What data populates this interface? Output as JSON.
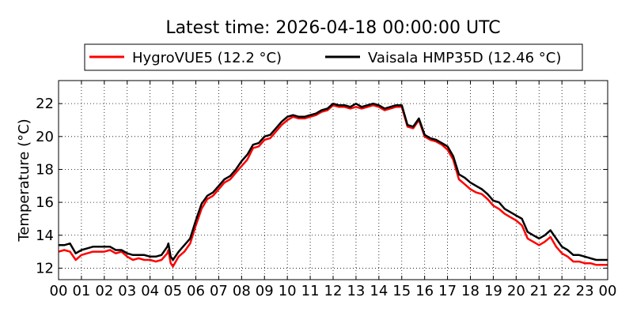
{
  "chart_data": {
    "type": "line",
    "title": "Latest time: 2026-04-18 00:00:00 UTC",
    "xlabel": "",
    "ylabel": "Temperature (°C)",
    "x_unit": "hour",
    "xlim": [
      0,
      24
    ],
    "ylim": [
      11.3,
      23.4
    ],
    "grid": true,
    "legend_placement": "top",
    "xticks": [
      0,
      1,
      2,
      3,
      4,
      5,
      6,
      7,
      8,
      9,
      10,
      11,
      12,
      13,
      14,
      15,
      16,
      17,
      18,
      19,
      20,
      21,
      22,
      23,
      24
    ],
    "xtick_labels": [
      "00",
      "01",
      "02",
      "03",
      "04",
      "05",
      "06",
      "07",
      "08",
      "09",
      "10",
      "11",
      "12",
      "13",
      "14",
      "15",
      "16",
      "17",
      "18",
      "19",
      "20",
      "21",
      "22",
      "23",
      "00"
    ],
    "yticks": [
      12,
      14,
      16,
      18,
      20,
      22
    ],
    "ytick_labels": [
      "12",
      "14",
      "16",
      "18",
      "20",
      "22"
    ],
    "series": [
      {
        "name": "HygroVUE5 (12.2 °C)",
        "color": "#ff0000",
        "x": [
          0.0,
          0.25,
          0.5,
          0.75,
          1.0,
          1.25,
          1.5,
          1.75,
          2.0,
          2.25,
          2.5,
          2.75,
          3.0,
          3.25,
          3.5,
          3.75,
          4.0,
          4.25,
          4.5,
          4.75,
          4.8,
          4.9,
          5.0,
          5.25,
          5.5,
          5.75,
          6.0,
          6.25,
          6.5,
          6.75,
          7.0,
          7.25,
          7.5,
          7.75,
          8.0,
          8.25,
          8.5,
          8.75,
          9.0,
          9.25,
          9.5,
          9.75,
          10.0,
          10.25,
          10.5,
          10.75,
          11.0,
          11.25,
          11.5,
          11.75,
          12.0,
          12.25,
          12.5,
          12.75,
          13.0,
          13.25,
          13.5,
          13.75,
          14.0,
          14.25,
          14.5,
          14.75,
          15.0,
          15.25,
          15.5,
          15.75,
          16.0,
          16.25,
          16.5,
          16.75,
          17.0,
          17.25,
          17.5,
          17.75,
          18.0,
          18.25,
          18.5,
          18.75,
          19.0,
          19.25,
          19.5,
          19.75,
          20.0,
          20.25,
          20.5,
          20.75,
          21.0,
          21.25,
          21.5,
          21.75,
          22.0,
          22.25,
          22.5,
          22.75,
          23.0,
          23.25,
          23.5,
          23.75,
          24.0
        ],
        "values": [
          13.0,
          13.1,
          13.0,
          12.5,
          12.8,
          12.9,
          13.0,
          13.0,
          13.0,
          13.1,
          12.9,
          13.0,
          12.7,
          12.5,
          12.6,
          12.5,
          12.5,
          12.4,
          12.5,
          12.9,
          13.1,
          12.3,
          12.1,
          12.7,
          13.0,
          13.5,
          14.6,
          15.6,
          16.2,
          16.4,
          16.8,
          17.2,
          17.4,
          17.8,
          18.2,
          18.6,
          19.3,
          19.4,
          19.8,
          19.9,
          20.3,
          20.7,
          21.0,
          21.2,
          21.1,
          21.1,
          21.2,
          21.3,
          21.5,
          21.6,
          21.9,
          21.8,
          21.8,
          21.7,
          21.8,
          21.7,
          21.8,
          21.9,
          21.8,
          21.6,
          21.7,
          21.8,
          21.8,
          20.6,
          20.5,
          21.0,
          20.0,
          19.8,
          19.7,
          19.5,
          19.2,
          18.6,
          17.4,
          17.1,
          16.8,
          16.6,
          16.5,
          16.2,
          15.8,
          15.6,
          15.3,
          15.1,
          14.9,
          14.6,
          13.8,
          13.6,
          13.4,
          13.6,
          13.9,
          13.3,
          12.9,
          12.7,
          12.4,
          12.4,
          12.3,
          12.3,
          12.2,
          12.2,
          12.2
        ]
      },
      {
        "name": "Vaisala HMP35D (12.46 °C)",
        "color": "#000000",
        "x": [
          0.0,
          0.25,
          0.5,
          0.75,
          1.0,
          1.25,
          1.5,
          1.75,
          2.0,
          2.25,
          2.5,
          2.75,
          3.0,
          3.25,
          3.5,
          3.75,
          4.0,
          4.25,
          4.5,
          4.75,
          4.8,
          4.9,
          5.0,
          5.25,
          5.5,
          5.75,
          6.0,
          6.25,
          6.5,
          6.75,
          7.0,
          7.25,
          7.5,
          7.75,
          8.0,
          8.25,
          8.5,
          8.75,
          9.0,
          9.25,
          9.5,
          9.75,
          10.0,
          10.25,
          10.5,
          10.75,
          11.0,
          11.25,
          11.5,
          11.75,
          12.0,
          12.25,
          12.5,
          12.75,
          13.0,
          13.25,
          13.5,
          13.75,
          14.0,
          14.25,
          14.5,
          14.75,
          15.0,
          15.25,
          15.5,
          15.75,
          16.0,
          16.25,
          16.5,
          16.75,
          17.0,
          17.25,
          17.5,
          17.75,
          18.0,
          18.25,
          18.5,
          18.75,
          19.0,
          19.25,
          19.5,
          19.75,
          20.0,
          20.25,
          20.5,
          20.75,
          21.0,
          21.25,
          21.5,
          21.75,
          22.0,
          22.25,
          22.5,
          22.75,
          23.0,
          23.25,
          23.5,
          23.75,
          24.0
        ],
        "values": [
          13.4,
          13.4,
          13.5,
          12.9,
          13.1,
          13.2,
          13.3,
          13.3,
          13.3,
          13.3,
          13.1,
          13.1,
          12.9,
          12.8,
          12.8,
          12.8,
          12.7,
          12.7,
          12.8,
          13.3,
          13.5,
          12.7,
          12.5,
          13.0,
          13.4,
          13.8,
          14.9,
          15.9,
          16.4,
          16.6,
          17.0,
          17.4,
          17.6,
          18.0,
          18.5,
          18.9,
          19.5,
          19.6,
          20.0,
          20.1,
          20.5,
          20.9,
          21.2,
          21.3,
          21.2,
          21.2,
          21.3,
          21.4,
          21.6,
          21.7,
          22.0,
          21.9,
          21.9,
          21.8,
          22.0,
          21.8,
          21.9,
          22.0,
          21.9,
          21.7,
          21.8,
          21.9,
          21.9,
          20.7,
          20.6,
          21.1,
          20.1,
          19.9,
          19.8,
          19.6,
          19.4,
          18.8,
          17.7,
          17.5,
          17.2,
          17.0,
          16.8,
          16.5,
          16.1,
          16.0,
          15.6,
          15.4,
          15.2,
          15.0,
          14.2,
          14.0,
          13.8,
          14.0,
          14.3,
          13.8,
          13.3,
          13.1,
          12.8,
          12.8,
          12.7,
          12.6,
          12.5,
          12.5,
          12.5
        ]
      }
    ]
  }
}
